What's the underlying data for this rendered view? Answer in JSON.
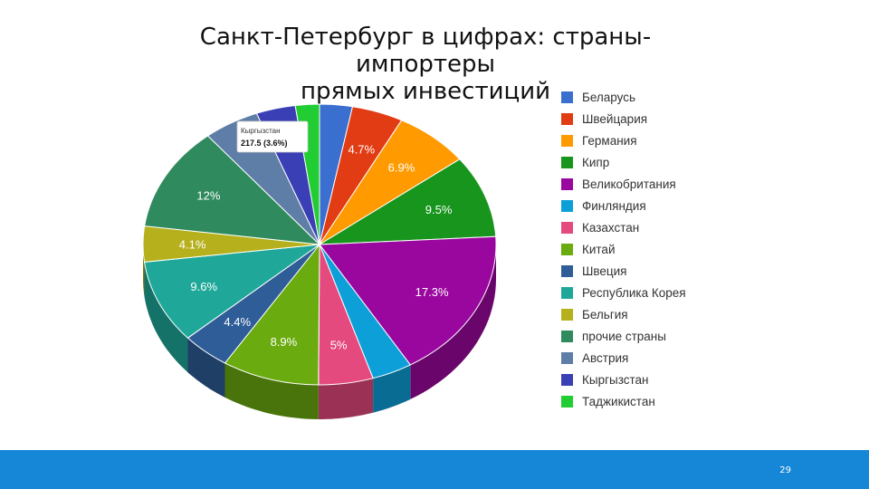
{
  "slide": {
    "title_line1": "Санкт-Петербург в цифрах: страны-импортеры",
    "title_line2": "прямых инвестиций",
    "page_number": "29"
  },
  "tooltip": {
    "name": "Кыргызстан",
    "value": "217.5 (3.6%)"
  },
  "chart_data": {
    "type": "pie",
    "style": "3d",
    "legend_placement": "right",
    "title": "",
    "series": [
      {
        "name": "Беларусь",
        "value": 3.0,
        "label": "",
        "color": "#3a6fd0"
      },
      {
        "name": "Швейцария",
        "value": 4.7,
        "label": "4.7%",
        "color": "#e23c14"
      },
      {
        "name": "Германия",
        "value": 6.9,
        "label": "6.9%",
        "color": "#ff9a00"
      },
      {
        "name": "Кипр",
        "value": 9.5,
        "label": "9.5%",
        "color": "#17951c"
      },
      {
        "name": "Великобритания",
        "value": 17.3,
        "label": "17.3%",
        "color": "#9a079e"
      },
      {
        "name": "Финляндия",
        "value": 3.7,
        "label": "",
        "color": "#0d9fd8"
      },
      {
        "name": "Казахстан",
        "value": 5.0,
        "label": "5%",
        "color": "#e44a7d"
      },
      {
        "name": "Китай",
        "value": 8.9,
        "label": "8.9%",
        "color": "#6aab10"
      },
      {
        "name": "Швеция",
        "value": 4.4,
        "label": "4.4%",
        "color": "#2f5d97"
      },
      {
        "name": "Республика Корея",
        "value": 9.6,
        "label": "9.6%",
        "color": "#1fa899"
      },
      {
        "name": "Бельгия",
        "value": 4.1,
        "label": "4.1%",
        "color": "#b6b01c"
      },
      {
        "name": "прочие страны",
        "value": 12.0,
        "label": "12%",
        "color": "#2f8b5e"
      },
      {
        "name": "Австрия",
        "value": 5.1,
        "label": "",
        "color": "#5e7ea7"
      },
      {
        "name": "Кыргызстан",
        "value": 3.6,
        "label": "",
        "color": "#3b3fb5"
      },
      {
        "name": "Таджикистан",
        "value": 2.2,
        "label": "",
        "color": "#22cc33"
      }
    ]
  }
}
